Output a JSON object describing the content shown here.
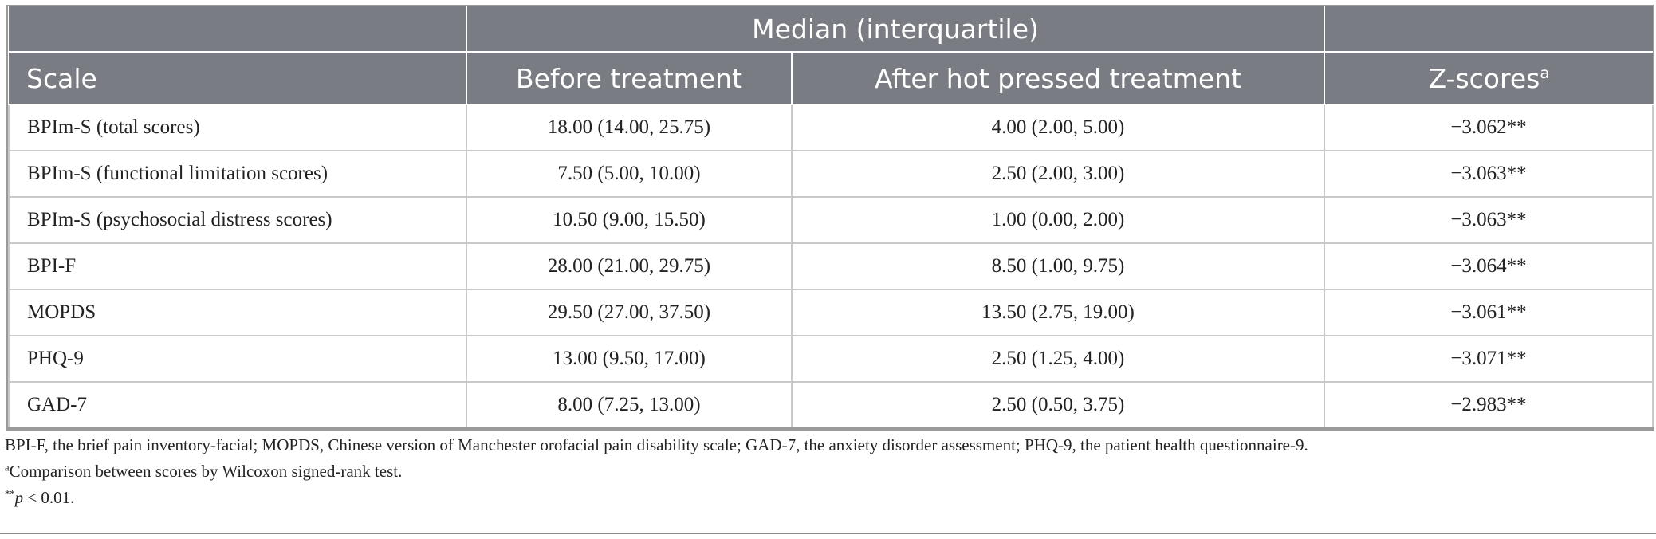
{
  "table": {
    "group_header": "Median (interquartile)",
    "columns": [
      "Scale",
      "Before treatment",
      "After hot pressed treatment",
      "Z-scores"
    ],
    "zscore_sup": "a",
    "rows": [
      {
        "scale": "BPIm-S (total scores)",
        "before": "18.00 (14.00, 25.75)",
        "after": "4.00 (2.00, 5.00)",
        "z": "−3.062**"
      },
      {
        "scale": "BPIm-S (functional limitation scores)",
        "before": "7.50 (5.00, 10.00)",
        "after": "2.50 (2.00, 3.00)",
        "z": "−3.063**"
      },
      {
        "scale": "BPIm-S (psychosocial distress scores)",
        "before": "10.50 (9.00, 15.50)",
        "after": "1.00 (0.00, 2.00)",
        "z": "−3.063**"
      },
      {
        "scale": "BPI-F",
        "before": "28.00 (21.00, 29.75)",
        "after": "8.50 (1.00, 9.75)",
        "z": "−3.064**"
      },
      {
        "scale": "MOPDS",
        "before": "29.50 (27.00, 37.50)",
        "after": "13.50 (2.75, 19.00)",
        "z": "−3.061**"
      },
      {
        "scale": "PHQ-9",
        "before": "13.00 (9.50, 17.00)",
        "after": "2.50 (1.25, 4.00)",
        "z": "−3.071**"
      },
      {
        "scale": "GAD-7",
        "before": "8.00 (7.25, 13.00)",
        "after": "2.50 (0.50, 3.75)",
        "z": "−2.983**"
      }
    ]
  },
  "footnotes": {
    "abbrev": "BPI-F, the brief pain inventory-facial; MOPDS, Chinese version of Manchester orofacial pain disability scale; GAD-7, the anxiety disorder assessment; PHQ-9, the patient health questionnaire-9.",
    "a_marker": "a",
    "a_text": "Comparison between scores by Wilcoxon signed-rank test.",
    "p_marker": "**",
    "p_var": "p",
    "p_text": " < 0.01."
  },
  "colors": {
    "header_bg": "#797c82",
    "header_text": "#ffffff",
    "grid": "#c9c9c9"
  }
}
